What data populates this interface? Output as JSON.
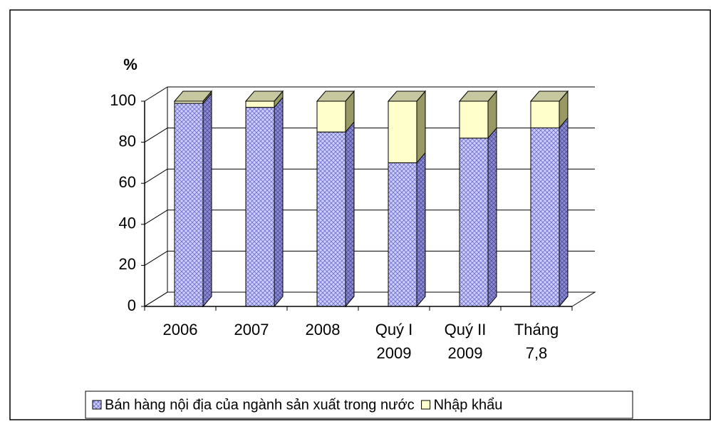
{
  "chart_data": {
    "type": "bar3d_stacked",
    "y_label": "%",
    "categories": [
      [
        "2006"
      ],
      [
        "2007"
      ],
      [
        "2008"
      ],
      [
        "Quý I",
        "2009"
      ],
      [
        "Quý II",
        "2009"
      ],
      [
        "Tháng",
        "7,8"
      ]
    ],
    "series": [
      {
        "name": "Bán hàng nội địa của ngành sản xuất trong nước",
        "color": "#ccccff",
        "values": [
          99,
          97,
          85,
          70,
          82,
          87
        ]
      },
      {
        "name": "Nhập khẩu",
        "color": "#ffffcc",
        "values": [
          1,
          3,
          15,
          30,
          18,
          13
        ]
      }
    ],
    "ylim": [
      0,
      100
    ],
    "yticks": [
      0,
      20,
      40,
      60,
      80,
      100
    ],
    "grid": true,
    "legend": "bottom"
  }
}
